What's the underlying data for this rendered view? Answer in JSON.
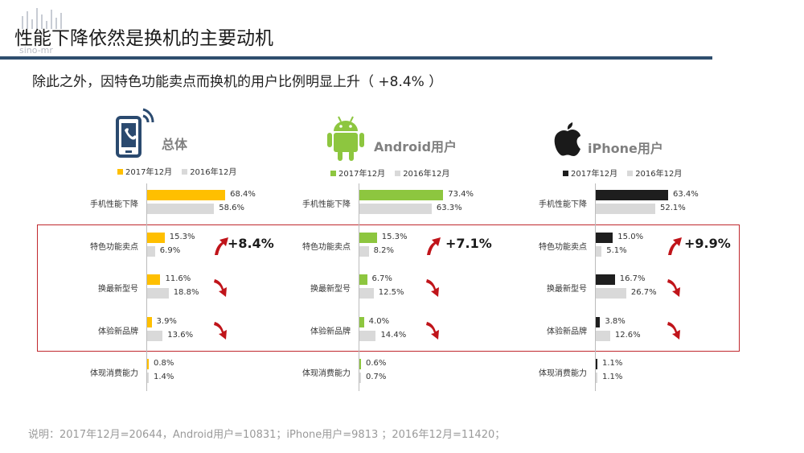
{
  "title": "性能下降依然是换机的主要动机",
  "subtitle": "除此之外，因特色功能卖点而换机的用户比例明显上升（ +8.4% ）",
  "footnote": "说明：2017年12月=20644，Android用户=10831；iPhone用户=9813 ；2016年12月=11420；",
  "logo_text": "sino-mr",
  "colors": {
    "total": "#ffbf00",
    "android": "#8dc63f",
    "iphone": "#1e1e1e",
    "prev": "#d9d9d9",
    "arrow": "#c0141a",
    "box": "#c0282e"
  },
  "chart_data": [
    {
      "type": "bar",
      "orientation": "horizontal",
      "panel_title": "总体",
      "icon": "phone-icon",
      "categories": [
        "手机性能下降",
        "特色功能卖点",
        "换最新型号",
        "体验新品牌",
        "体现消费能力"
      ],
      "series": [
        {
          "name": "2017年12月",
          "values": [
            68.4,
            15.3,
            11.6,
            3.9,
            0.8
          ],
          "labels": [
            "68.4%",
            "15.3%",
            "11.6%",
            "3.9%",
            "0.8%"
          ]
        },
        {
          "name": "2016年12月",
          "values": [
            58.6,
            6.9,
            18.8,
            13.6,
            1.4
          ],
          "labels": [
            "58.6%",
            "6.9%",
            "18.8%",
            "13.6%",
            "1.4%"
          ]
        }
      ],
      "highlight_change": "+8.4%",
      "trend_arrows": [
        "up",
        "down",
        "down"
      ],
      "legend": "top"
    },
    {
      "type": "bar",
      "orientation": "horizontal",
      "panel_title": "Android用户",
      "icon": "android-icon",
      "categories": [
        "手机性能下降",
        "特色功能卖点",
        "换最新型号",
        "体验新品牌",
        "体现消费能力"
      ],
      "series": [
        {
          "name": "2017年12月",
          "values": [
            73.4,
            15.3,
            6.7,
            4.0,
            0.6
          ],
          "labels": [
            "73.4%",
            "15.3%",
            "6.7%",
            "4.0%",
            "0.6%"
          ]
        },
        {
          "name": "2016年12月",
          "values": [
            63.3,
            8.2,
            12.5,
            14.4,
            0.7
          ],
          "labels": [
            "63.3%",
            "8.2%",
            "12.5%",
            "14.4%",
            "0.7%"
          ]
        }
      ],
      "highlight_change": "+7.1%",
      "trend_arrows": [
        "up",
        "down",
        "down"
      ],
      "legend": "top"
    },
    {
      "type": "bar",
      "orientation": "horizontal",
      "panel_title": "iPhone用户",
      "icon": "apple-icon",
      "categories": [
        "手机性能下降",
        "特色功能卖点",
        "换最新型号",
        "体验新品牌",
        "体现消费能力"
      ],
      "series": [
        {
          "name": "2017年12月",
          "values": [
            63.4,
            15.0,
            16.7,
            3.8,
            1.1
          ],
          "labels": [
            "63.4%",
            "15.0%",
            "16.7%",
            "3.8%",
            "1.1%"
          ]
        },
        {
          "name": "2016年12月",
          "values": [
            52.1,
            5.1,
            26.7,
            12.6,
            1.1
          ],
          "labels": [
            "52.1%",
            "5.1%",
            "26.7%",
            "12.6%",
            "1.1%"
          ]
        }
      ],
      "highlight_change": "+9.9%",
      "trend_arrows": [
        "up",
        "down",
        "down"
      ],
      "legend": "top"
    }
  ]
}
